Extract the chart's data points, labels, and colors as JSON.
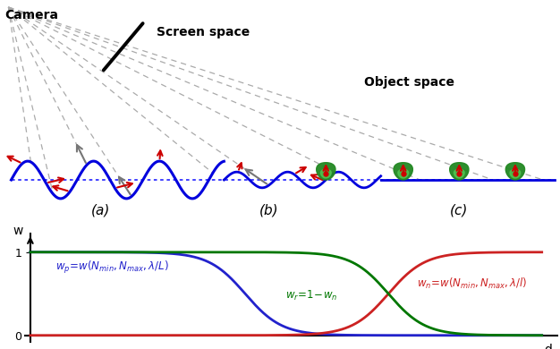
{
  "bg_color": "#ffffff",
  "wave_color": "#0000dd",
  "dotted_line_color": "#3333ff",
  "red_arrow_color": "#cc0000",
  "gray_arrow_color": "#777777",
  "dashed_line_color": "#aaaaaa",
  "screen_line_color": "#000000",
  "camera_text": "Camera",
  "screen_space_text": "Screen space",
  "object_space_text": "Object space",
  "label_a": "(a)",
  "label_b": "(b)",
  "label_c": "(c)",
  "w_label": "w",
  "d_label": "d",
  "blue_line_color": "#2222cc",
  "red_line_color": "#cc2222",
  "green_line_color": "#007700",
  "green_blob_outer": "#228822",
  "green_blob_inner": "#55cc55",
  "red_dot_color": "#cc0000"
}
